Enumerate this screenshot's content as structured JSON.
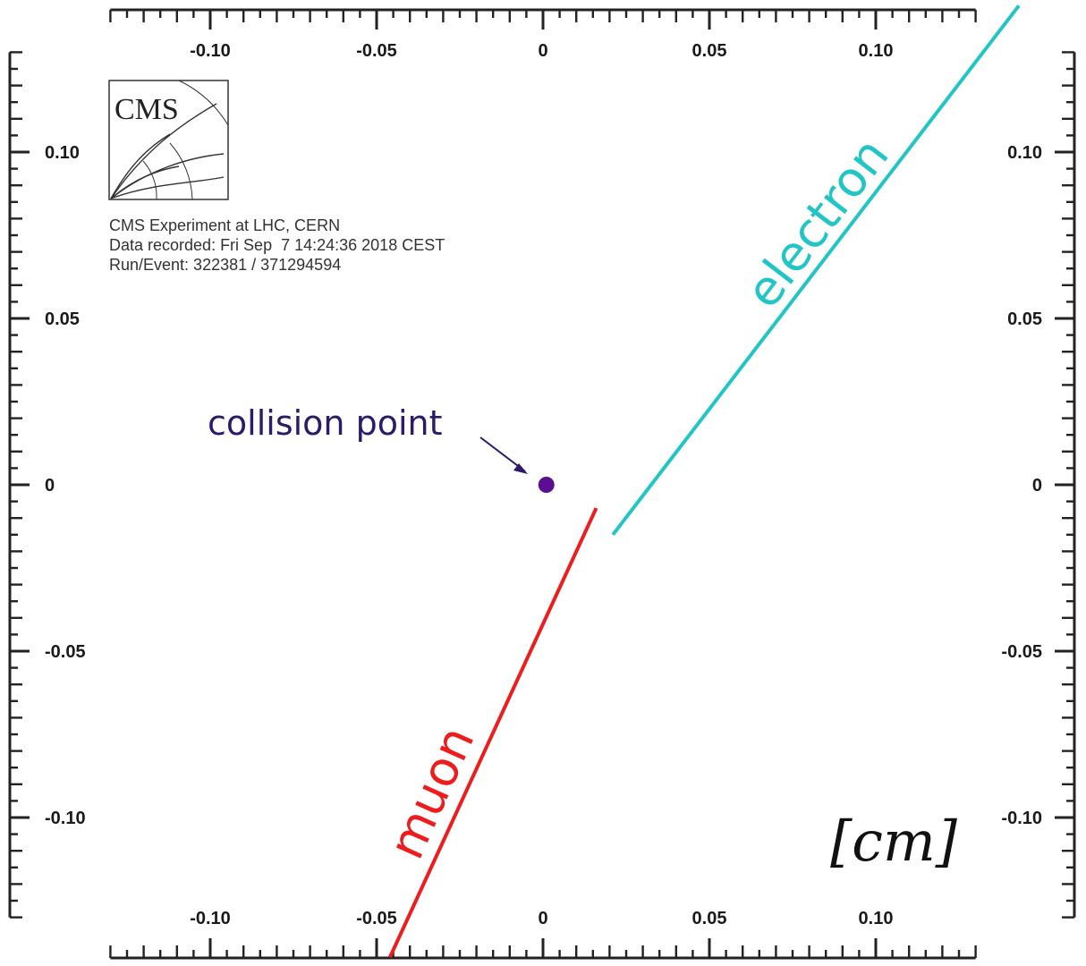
{
  "chart_data": {
    "type": "diagram",
    "axis_unit": "[cm]",
    "range": [
      -0.13,
      0.13
    ],
    "x_tick_labels": [
      {
        "value": -0.1,
        "label": "-0.10"
      },
      {
        "value": -0.05,
        "label": "-0.05"
      },
      {
        "value": 0,
        "label": "0"
      },
      {
        "value": 0.05,
        "label": "0.05"
      },
      {
        "value": 0.1,
        "label": "0.10"
      }
    ],
    "y_tick_labels": [
      {
        "value": 0.1,
        "label": "0.10"
      },
      {
        "value": 0.05,
        "label": "0.05"
      },
      {
        "value": 0,
        "label": "0"
      },
      {
        "value": -0.05,
        "label": "-0.05"
      },
      {
        "value": -0.1,
        "label": "-0.10"
      }
    ],
    "collision_point": {
      "label": "collision point",
      "x": 0.001,
      "y": 0.0,
      "color": "#5b0e91"
    },
    "tracks": [
      {
        "name": "electron",
        "color": "#22c5c5",
        "start": [
          0.021,
          -0.015
        ],
        "end": [
          0.143,
          0.144
        ]
      },
      {
        "name": "muon",
        "color": "#ee1c1c",
        "start": [
          0.016,
          -0.007
        ],
        "end": [
          -0.046,
          -0.142
        ]
      }
    ]
  },
  "info": {
    "logo": "CMS",
    "line1": "CMS Experiment at LHC, CERN",
    "line2": "Data recorded: Fri Sep  7 14:24:36 2018 CEST",
    "line3": "Run/Event: 322381 / 371294594"
  },
  "colors": {
    "annotation_text": "#2e1a6b",
    "axis": "#222222"
  }
}
